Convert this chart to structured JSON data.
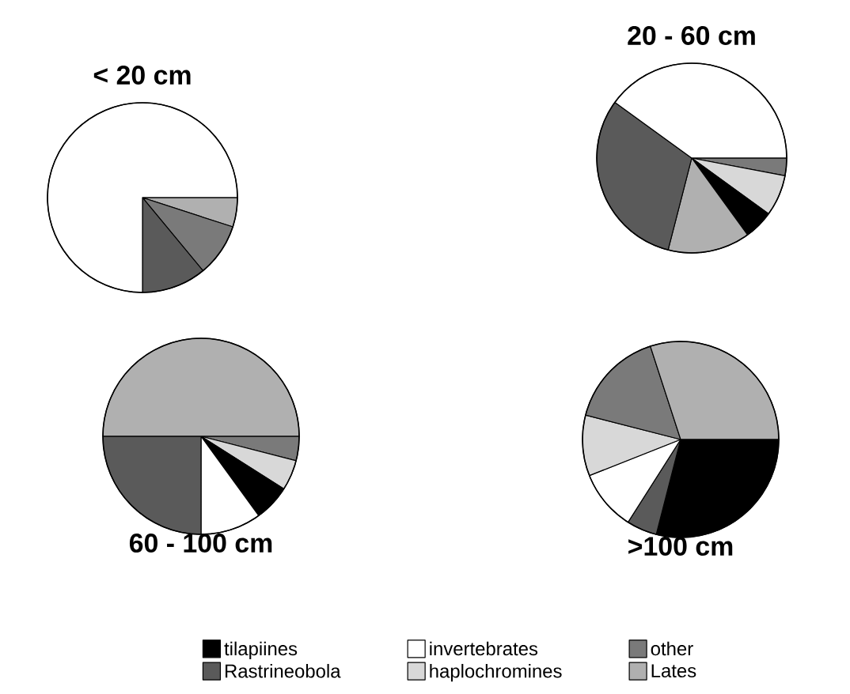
{
  "chart_data": [
    {
      "type": "pie",
      "title": "< 20 cm",
      "categories": [
        null,
        null,
        null,
        null
      ],
      "values": [
        5,
        9,
        11,
        75
      ],
      "colors": [
        "#b0b0b0",
        "#7a7a7a",
        "#5a5a5a",
        "#ffffff"
      ]
    },
    {
      "type": "pie",
      "title": "20 - 60 cm",
      "categories": [
        null,
        null,
        null,
        null,
        null,
        null
      ],
      "values": [
        3,
        7,
        5,
        14,
        31,
        40
      ],
      "colors": [
        "#7a7a7a",
        "#d8d8d8",
        "#000000",
        "#b0b0b0",
        "#5a5a5a",
        "#ffffff"
      ]
    },
    {
      "type": "pie",
      "title": "60 - 100 cm",
      "categories": [
        null,
        null,
        null,
        null,
        null,
        null
      ],
      "values": [
        4,
        5,
        6,
        10,
        25,
        50
      ],
      "colors": [
        "#7a7a7a",
        "#d8d8d8",
        "#000000",
        "#ffffff",
        "#5a5a5a",
        "#b0b0b0"
      ]
    },
    {
      "type": "pie",
      "title": ">100 cm",
      "categories": [
        "tilapiines",
        "Rastrineobola",
        "invertebrates",
        "haplochromines",
        "other",
        "Lates"
      ],
      "values": [
        29,
        5,
        10,
        10,
        16,
        30
      ],
      "colors": [
        "#000000",
        "#5a5a5a",
        "#ffffff",
        "#d8d8d8",
        "#7a7a7a",
        "#b0b0b0"
      ],
      "legend": "bottom"
    }
  ]
}
